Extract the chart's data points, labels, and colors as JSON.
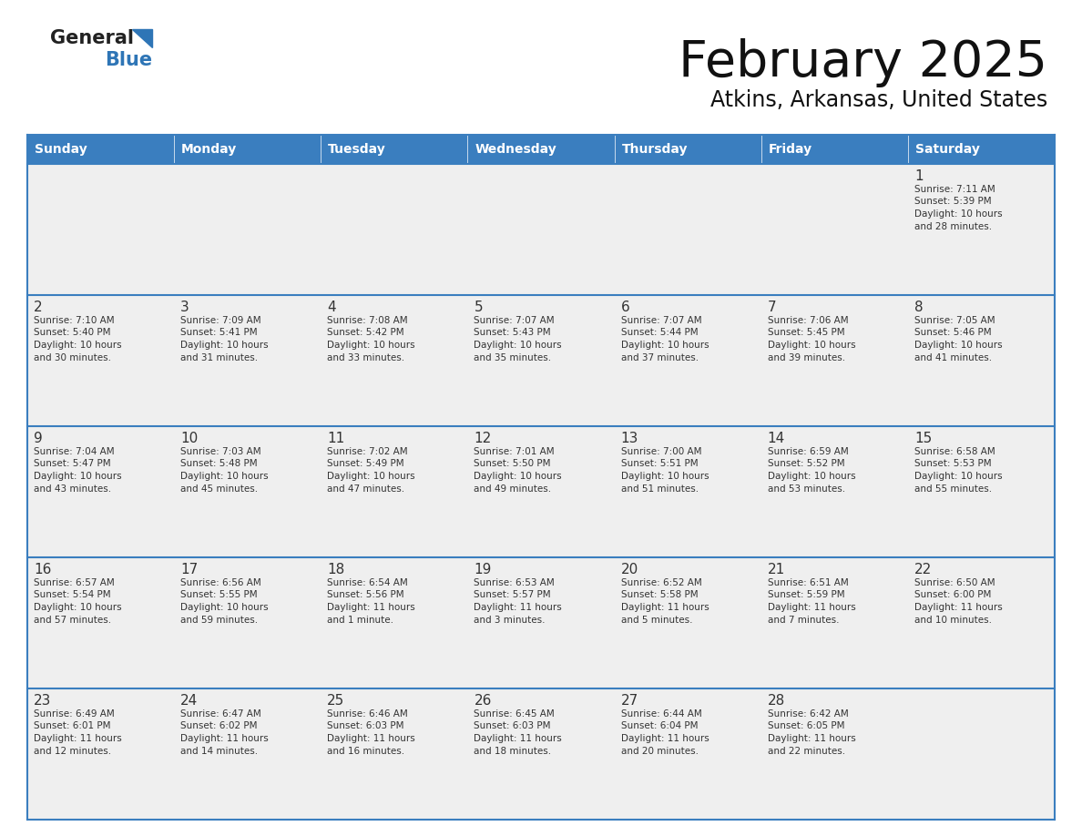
{
  "title": "February 2025",
  "subtitle": "Atkins, Arkansas, United States",
  "header_color": "#3A7EBF",
  "header_text_color": "#FFFFFF",
  "day_names": [
    "Sunday",
    "Monday",
    "Tuesday",
    "Wednesday",
    "Thursday",
    "Friday",
    "Saturday"
  ],
  "background_color": "#FFFFFF",
  "cell_bg": "#EFEFEF",
  "border_color": "#3A7EBF",
  "text_color": "#333333",
  "logo_general_color": "#222222",
  "logo_blue_color": "#2E75B6",
  "logo_triangle_color": "#2E75B6",
  "days": [
    {
      "day": 1,
      "col": 6,
      "row": 0,
      "sunrise": "7:11 AM",
      "sunset": "5:39 PM",
      "daylight": "10 hours and 28 minutes."
    },
    {
      "day": 2,
      "col": 0,
      "row": 1,
      "sunrise": "7:10 AM",
      "sunset": "5:40 PM",
      "daylight": "10 hours and 30 minutes."
    },
    {
      "day": 3,
      "col": 1,
      "row": 1,
      "sunrise": "7:09 AM",
      "sunset": "5:41 PM",
      "daylight": "10 hours and 31 minutes."
    },
    {
      "day": 4,
      "col": 2,
      "row": 1,
      "sunrise": "7:08 AM",
      "sunset": "5:42 PM",
      "daylight": "10 hours and 33 minutes."
    },
    {
      "day": 5,
      "col": 3,
      "row": 1,
      "sunrise": "7:07 AM",
      "sunset": "5:43 PM",
      "daylight": "10 hours and 35 minutes."
    },
    {
      "day": 6,
      "col": 4,
      "row": 1,
      "sunrise": "7:07 AM",
      "sunset": "5:44 PM",
      "daylight": "10 hours and 37 minutes."
    },
    {
      "day": 7,
      "col": 5,
      "row": 1,
      "sunrise": "7:06 AM",
      "sunset": "5:45 PM",
      "daylight": "10 hours and 39 minutes."
    },
    {
      "day": 8,
      "col": 6,
      "row": 1,
      "sunrise": "7:05 AM",
      "sunset": "5:46 PM",
      "daylight": "10 hours and 41 minutes."
    },
    {
      "day": 9,
      "col": 0,
      "row": 2,
      "sunrise": "7:04 AM",
      "sunset": "5:47 PM",
      "daylight": "10 hours and 43 minutes."
    },
    {
      "day": 10,
      "col": 1,
      "row": 2,
      "sunrise": "7:03 AM",
      "sunset": "5:48 PM",
      "daylight": "10 hours and 45 minutes."
    },
    {
      "day": 11,
      "col": 2,
      "row": 2,
      "sunrise": "7:02 AM",
      "sunset": "5:49 PM",
      "daylight": "10 hours and 47 minutes."
    },
    {
      "day": 12,
      "col": 3,
      "row": 2,
      "sunrise": "7:01 AM",
      "sunset": "5:50 PM",
      "daylight": "10 hours and 49 minutes."
    },
    {
      "day": 13,
      "col": 4,
      "row": 2,
      "sunrise": "7:00 AM",
      "sunset": "5:51 PM",
      "daylight": "10 hours and 51 minutes."
    },
    {
      "day": 14,
      "col": 5,
      "row": 2,
      "sunrise": "6:59 AM",
      "sunset": "5:52 PM",
      "daylight": "10 hours and 53 minutes."
    },
    {
      "day": 15,
      "col": 6,
      "row": 2,
      "sunrise": "6:58 AM",
      "sunset": "5:53 PM",
      "daylight": "10 hours and 55 minutes."
    },
    {
      "day": 16,
      "col": 0,
      "row": 3,
      "sunrise": "6:57 AM",
      "sunset": "5:54 PM",
      "daylight": "10 hours and 57 minutes."
    },
    {
      "day": 17,
      "col": 1,
      "row": 3,
      "sunrise": "6:56 AM",
      "sunset": "5:55 PM",
      "daylight": "10 hours and 59 minutes."
    },
    {
      "day": 18,
      "col": 2,
      "row": 3,
      "sunrise": "6:54 AM",
      "sunset": "5:56 PM",
      "daylight": "11 hours and 1 minute."
    },
    {
      "day": 19,
      "col": 3,
      "row": 3,
      "sunrise": "6:53 AM",
      "sunset": "5:57 PM",
      "daylight": "11 hours and 3 minutes."
    },
    {
      "day": 20,
      "col": 4,
      "row": 3,
      "sunrise": "6:52 AM",
      "sunset": "5:58 PM",
      "daylight": "11 hours and 5 minutes."
    },
    {
      "day": 21,
      "col": 5,
      "row": 3,
      "sunrise": "6:51 AM",
      "sunset": "5:59 PM",
      "daylight": "11 hours and 7 minutes."
    },
    {
      "day": 22,
      "col": 6,
      "row": 3,
      "sunrise": "6:50 AM",
      "sunset": "6:00 PM",
      "daylight": "11 hours and 10 minutes."
    },
    {
      "day": 23,
      "col": 0,
      "row": 4,
      "sunrise": "6:49 AM",
      "sunset": "6:01 PM",
      "daylight": "11 hours and 12 minutes."
    },
    {
      "day": 24,
      "col": 1,
      "row": 4,
      "sunrise": "6:47 AM",
      "sunset": "6:02 PM",
      "daylight": "11 hours and 14 minutes."
    },
    {
      "day": 25,
      "col": 2,
      "row": 4,
      "sunrise": "6:46 AM",
      "sunset": "6:03 PM",
      "daylight": "11 hours and 16 minutes."
    },
    {
      "day": 26,
      "col": 3,
      "row": 4,
      "sunrise": "6:45 AM",
      "sunset": "6:03 PM",
      "daylight": "11 hours and 18 minutes."
    },
    {
      "day": 27,
      "col": 4,
      "row": 4,
      "sunrise": "6:44 AM",
      "sunset": "6:04 PM",
      "daylight": "11 hours and 20 minutes."
    },
    {
      "day": 28,
      "col": 5,
      "row": 4,
      "sunrise": "6:42 AM",
      "sunset": "6:05 PM",
      "daylight": "11 hours and 22 minutes."
    }
  ],
  "num_rows": 5,
  "num_cols": 7
}
